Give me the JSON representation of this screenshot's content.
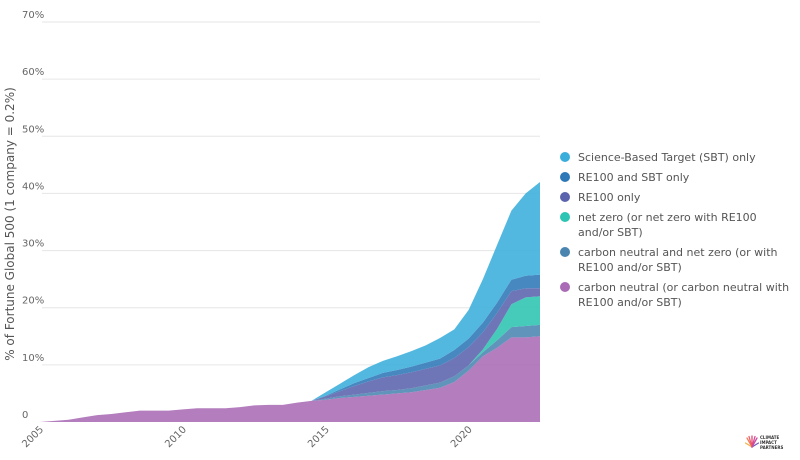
{
  "colors": {
    "sbt_only": "#3aaedb",
    "re100_sbt_only": "#2e78b7",
    "re100_only": "#5b63ad",
    "net_zero": "#2cc4b2",
    "cn_and_nz": "#4a85b0",
    "carbon_neutral": "#a96bb5",
    "axis_text": "#666666",
    "gridline": "#e6e6e6"
  },
  "chart_data": {
    "type": "area",
    "stacked": true,
    "title": "",
    "xlabel": "",
    "ylabel": "% of Fortune Global 500 (1 company = 0.2%)",
    "ylim": [
      0,
      70
    ],
    "xlim": [
      2005,
      2022.5
    ],
    "grid": true,
    "legend_position": "right",
    "y_ticks": [
      "0",
      "10%",
      "20%",
      "30%",
      "40%",
      "50%",
      "60%",
      "70%"
    ],
    "x_ticks": [
      "2005",
      "2010",
      "2015",
      "2020"
    ],
    "x": [
      2005,
      2005.5,
      2006,
      2006.5,
      2007,
      2007.5,
      2008,
      2008.5,
      2009,
      2009.5,
      2010,
      2010.5,
      2011,
      2011.5,
      2012,
      2012.5,
      2013,
      2013.5,
      2014,
      2014.5,
      2015,
      2015.5,
      2016,
      2016.5,
      2017,
      2017.5,
      2018,
      2018.5,
      2019,
      2019.5,
      2020,
      2020.5,
      2021,
      2021.5,
      2022,
      2022.5
    ],
    "series": [
      {
        "name": "carbon neutral (or carbon neutral with RE100 and/or SBT)",
        "color_key": "carbon_neutral",
        "values": [
          0,
          0.2,
          0.4,
          0.8,
          1.2,
          1.4,
          1.7,
          2.0,
          2.0,
          2.0,
          2.2,
          2.4,
          2.4,
          2.4,
          2.6,
          2.9,
          3.0,
          3.0,
          3.4,
          3.7,
          3.9,
          4.2,
          4.4,
          4.6,
          4.8,
          5.0,
          5.2,
          5.6,
          6.0,
          7.0,
          9.0,
          11.5,
          13.0,
          14.8,
          14.8,
          15.0
        ]
      },
      {
        "name": "carbon neutral and net zero (or with RE100 and/or SBT)",
        "color_key": "cn_and_nz",
        "values": [
          0,
          0,
          0,
          0,
          0,
          0,
          0,
          0,
          0,
          0,
          0,
          0,
          0,
          0,
          0,
          0,
          0,
          0,
          0,
          0,
          0.2,
          0.3,
          0.4,
          0.5,
          0.6,
          0.6,
          0.7,
          0.8,
          0.9,
          1.0,
          0.9,
          0.7,
          1.3,
          1.8,
          2.0,
          2.0
        ]
      },
      {
        "name": "net zero (or net zero with RE100 and/or SBT)",
        "color_key": "net_zero",
        "values": [
          0,
          0,
          0,
          0,
          0,
          0,
          0,
          0,
          0,
          0,
          0,
          0,
          0,
          0,
          0,
          0,
          0,
          0,
          0,
          0,
          0,
          0,
          0,
          0,
          0,
          0,
          0,
          0,
          0,
          0,
          0,
          0.5,
          2.0,
          4.0,
          5.0,
          5.0
        ]
      },
      {
        "name": "RE100 only",
        "color_key": "re100_only",
        "values": [
          0,
          0,
          0,
          0,
          0,
          0,
          0,
          0,
          0,
          0,
          0,
          0,
          0,
          0,
          0,
          0,
          0,
          0,
          0,
          0,
          0.4,
          0.9,
          1.5,
          2.0,
          2.4,
          2.6,
          2.8,
          2.9,
          3.0,
          3.2,
          3.2,
          3.0,
          2.8,
          2.3,
          1.6,
          1.4
        ]
      },
      {
        "name": "RE100 and SBT only",
        "color_key": "re100_sbt_only",
        "values": [
          0,
          0,
          0,
          0,
          0,
          0,
          0,
          0,
          0,
          0,
          0,
          0,
          0,
          0,
          0,
          0,
          0,
          0,
          0,
          0,
          0.1,
          0.3,
          0.5,
          0.6,
          0.8,
          0.9,
          1.0,
          1.1,
          1.2,
          1.4,
          1.5,
          1.7,
          1.8,
          2.0,
          2.2,
          2.4
        ]
      },
      {
        "name": "Science-Based Target (SBT) only",
        "color_key": "sbt_only",
        "values": [
          0,
          0,
          0,
          0,
          0,
          0,
          0,
          0,
          0,
          0,
          0,
          0,
          0,
          0,
          0,
          0,
          0,
          0,
          0,
          0,
          0.6,
          1.0,
          1.4,
          1.9,
          2.1,
          2.4,
          2.7,
          3.0,
          3.6,
          3.6,
          5.0,
          7.6,
          10.1,
          12.1,
          14.4,
          16.2
        ]
      }
    ]
  },
  "legend": [
    {
      "label": "Science-Based Target (SBT) only",
      "color_key": "sbt_only"
    },
    {
      "label": "RE100 and SBT only",
      "color_key": "re100_sbt_only"
    },
    {
      "label": "RE100 only",
      "color_key": "re100_only"
    },
    {
      "label": "net zero (or net zero with RE100 and/or SBT)",
      "color_key": "net_zero"
    },
    {
      "label": "carbon neutral and net zero (or with RE100 and/or SBT)",
      "color_key": "cn_and_nz"
    },
    {
      "label": "carbon neutral (or carbon neutral with RE100 and/or SBT)",
      "color_key": "carbon_neutral"
    }
  ],
  "logo": {
    "lines": [
      "CLIMATE",
      "IMPACT",
      "PARTNERS"
    ],
    "icon": "sunburst-logo-icon"
  }
}
